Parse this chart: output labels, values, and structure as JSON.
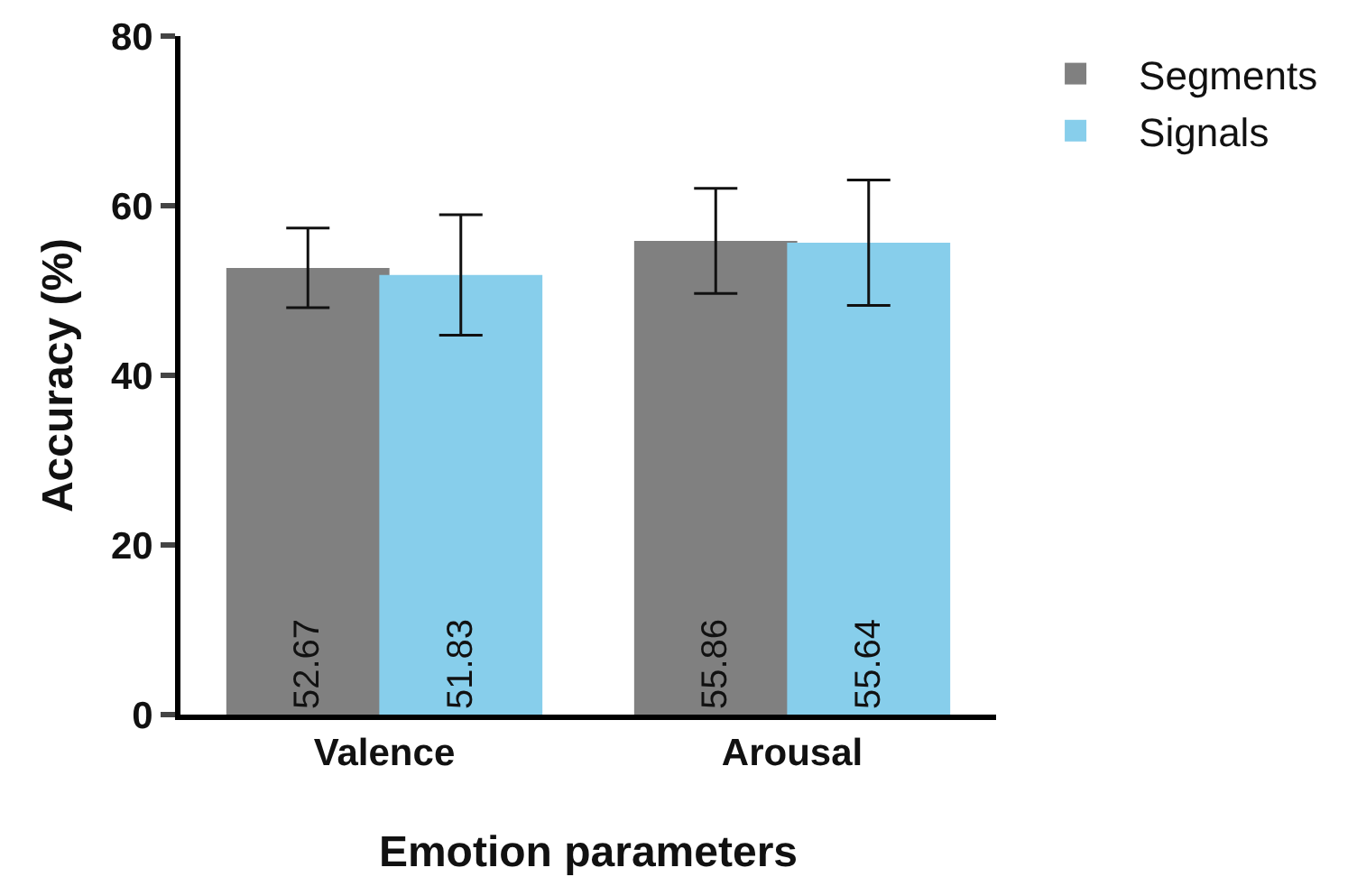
{
  "chart_data": {
    "type": "bar",
    "xlabel": "Emotion parameters",
    "ylabel": "Accuracy (%)",
    "categories": [
      "Valence",
      "Arousal"
    ],
    "series": [
      {
        "name": "Segments",
        "color": "#808080",
        "values": [
          52.67,
          55.86
        ],
        "errors": [
          4.7,
          6.2
        ]
      },
      {
        "name": "Signals",
        "color": "#87ceeb",
        "values": [
          51.83,
          55.64
        ],
        "errors": [
          7.1,
          7.4
        ]
      }
    ],
    "ylim": [
      0,
      80
    ],
    "yticks": [
      0,
      20,
      40,
      60,
      80
    ],
    "grid": false,
    "legend": "top right",
    "data_labels": true
  }
}
